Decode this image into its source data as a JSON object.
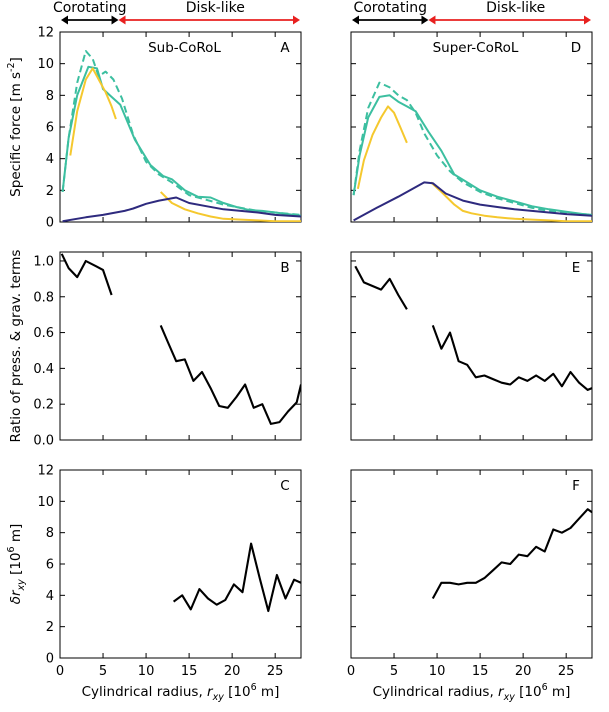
{
  "chart_data": {
    "type": "line",
    "shared_xlabel": "Cylindrical radius, r_xy [10^6 m]",
    "xlim": [
      0,
      28
    ],
    "x_ticks": [
      0,
      5,
      10,
      15,
      20,
      25
    ],
    "rows": [
      {
        "ylabel": "Specific force [m s^-2]",
        "ylim": [
          0,
          12
        ],
        "yticks": [
          0,
          2,
          4,
          6,
          8,
          10,
          12
        ]
      },
      {
        "ylabel": "Ratio of press. & grav. terms",
        "ylim": [
          0.0,
          1.05
        ],
        "yticks": [
          0.0,
          0.2,
          0.4,
          0.6,
          0.8,
          1.0
        ]
      },
      {
        "ylabel": "δr_xy [10^6 m]",
        "ylim": [
          0,
          12
        ],
        "yticks": [
          0,
          2,
          4,
          6,
          8,
          10,
          12
        ]
      }
    ],
    "region_labels": {
      "corotating": "Corotating",
      "disk_like": "Disk-like"
    },
    "colors": {
      "teal": "#3cbfa0",
      "yellow": "#f5c82e",
      "navy": "#2e2a7e",
      "black": "#000000",
      "red": "#e8201f"
    },
    "columns": [
      {
        "title": "Sub-CoRoL",
        "boundary_r": 6.8,
        "panels": [
          {
            "letter": "A",
            "series": [
              {
                "name": "teal-solid",
                "color": "teal",
                "dash": false,
                "x": [
                  0.3,
                  1,
                  2,
                  3.3,
                  4.3,
                  5,
                  6,
                  7,
                  8.7,
                  10.5,
                  12,
                  13,
                  14.5,
                  16,
                  17.5,
                  19,
                  20.5,
                  22,
                  23.5,
                  25,
                  26.5,
                  28
                ],
                "y": [
                  1.9,
                  5.3,
                  8.0,
                  9.8,
                  9.7,
                  8.4,
                  7.9,
                  7.4,
                  5.2,
                  3.6,
                  2.9,
                  2.7,
                  2.0,
                  1.6,
                  1.55,
                  1.2,
                  0.95,
                  0.75,
                  0.7,
                  0.6,
                  0.5,
                  0.4
                ]
              },
              {
                "name": "teal-dashed",
                "color": "teal",
                "dash": true,
                "x": [
                  0.3,
                  1,
                  2,
                  3,
                  3.8,
                  4.5,
                  5.3,
                  6.2,
                  7.2,
                  8.5,
                  10,
                  11.5,
                  13,
                  15,
                  17,
                  19,
                  21,
                  23,
                  25,
                  27,
                  28
                ],
                "y": [
                  1.9,
                  5.3,
                  8.8,
                  10.8,
                  10.3,
                  9.2,
                  9.5,
                  9.0,
                  7.8,
                  5.5,
                  3.8,
                  3.0,
                  2.5,
                  1.7,
                  1.4,
                  1.1,
                  0.9,
                  0.7,
                  0.6,
                  0.5,
                  0.45
                ]
              },
              {
                "name": "yellow-inner",
                "color": "yellow",
                "dash": false,
                "x": [
                  1.2,
                  2,
                  3,
                  3.8,
                  4.5,
                  5.3,
                  6,
                  6.5
                ],
                "y": [
                  4.2,
                  7.0,
                  9.0,
                  9.7,
                  9.0,
                  8.2,
                  7.3,
                  6.5
                ]
              },
              {
                "name": "yellow-outer",
                "color": "yellow",
                "dash": false,
                "x": [
                  11.7,
                  13,
                  14.5,
                  16,
                  17.5,
                  19,
                  21,
                  23,
                  25,
                  28
                ],
                "y": [
                  1.9,
                  1.2,
                  0.8,
                  0.55,
                  0.35,
                  0.2,
                  0.15,
                  0.1,
                  0.05,
                  0.05
                ]
              },
              {
                "name": "navy",
                "color": "navy",
                "dash": false,
                "x": [
                  0.3,
                  3,
                  5,
                  7.5,
                  8.5,
                  10,
                  11.5,
                  13.5,
                  15,
                  17,
                  19,
                  21,
                  23,
                  25,
                  28
                ],
                "y": [
                  0.05,
                  0.3,
                  0.45,
                  0.7,
                  0.85,
                  1.15,
                  1.35,
                  1.55,
                  1.2,
                  1.0,
                  0.8,
                  0.7,
                  0.6,
                  0.45,
                  0.35
                ]
              }
            ]
          },
          {
            "letter": "B",
            "series": [
              {
                "name": "ratio-inner",
                "color": "black",
                "dash": false,
                "x": [
                  0.2,
                  1,
                  2,
                  3,
                  4.2,
                  5,
                  6
                ],
                "y": [
                  1.04,
                  0.96,
                  0.91,
                  1.0,
                  0.97,
                  0.95,
                  0.81
                ]
              },
              {
                "name": "ratio-outer",
                "color": "black",
                "dash": false,
                "x": [
                  11.7,
                  12.5,
                  13.5,
                  14.5,
                  15.5,
                  16.5,
                  17.5,
                  18.5,
                  19.5,
                  20.5,
                  21.5,
                  22.5,
                  23.5,
                  24.5,
                  25.5,
                  26.5,
                  27.5,
                  28
                ],
                "y": [
                  0.64,
                  0.55,
                  0.44,
                  0.45,
                  0.33,
                  0.38,
                  0.29,
                  0.19,
                  0.18,
                  0.24,
                  0.31,
                  0.18,
                  0.2,
                  0.09,
                  0.1,
                  0.16,
                  0.21,
                  0.31
                ]
              }
            ]
          },
          {
            "letter": "C",
            "series": [
              {
                "name": "delta",
                "color": "black",
                "dash": false,
                "x": [
                  13.2,
                  14.2,
                  15.2,
                  16.2,
                  17.2,
                  18.2,
                  19.2,
                  20.2,
                  21.2,
                  22.2,
                  23.2,
                  24.2,
                  25.2,
                  26.2,
                  27.2,
                  28
                ],
                "y": [
                  3.6,
                  4.0,
                  3.1,
                  4.4,
                  3.8,
                  3.4,
                  3.7,
                  4.7,
                  4.2,
                  7.3,
                  5.1,
                  3.0,
                  5.3,
                  3.8,
                  5.0,
                  4.8
                ]
              }
            ]
          }
        ]
      },
      {
        "title": "Super-CoRoL",
        "boundary_r": 9.0,
        "panels": [
          {
            "letter": "D",
            "series": [
              {
                "name": "teal-solid",
                "color": "teal",
                "dash": false,
                "x": [
                  0.3,
                  1,
                  2,
                  3.3,
                  4.5,
                  5.5,
                  6.5,
                  7.5,
                  9,
                  10.5,
                  12,
                  13.5,
                  15,
                  17,
                  19,
                  21,
                  23,
                  25,
                  27,
                  28
                ],
                "y": [
                  1.7,
                  4.2,
                  6.6,
                  7.9,
                  8.0,
                  7.6,
                  7.3,
                  7.0,
                  5.7,
                  4.5,
                  3.0,
                  2.5,
                  2.0,
                  1.6,
                  1.3,
                  1.0,
                  0.8,
                  0.65,
                  0.5,
                  0.45
                ]
              },
              {
                "name": "teal-dashed",
                "color": "teal",
                "dash": true,
                "x": [
                  0.3,
                  1,
                  2,
                  3.3,
                  4.5,
                  5.5,
                  6.5,
                  7.5,
                  8.5,
                  10,
                  11.5,
                  13,
                  15,
                  17,
                  19,
                  21,
                  23,
                  25,
                  27,
                  28
                ],
                "y": [
                  1.7,
                  4.5,
                  7.2,
                  8.8,
                  8.5,
                  8.0,
                  7.7,
                  6.9,
                  5.6,
                  4.2,
                  3.2,
                  2.5,
                  1.9,
                  1.5,
                  1.2,
                  0.9,
                  0.7,
                  0.6,
                  0.5,
                  0.45
                ]
              },
              {
                "name": "yellow-inner",
                "color": "yellow",
                "dash": false,
                "x": [
                  0.8,
                  1.5,
                  2.5,
                  3.5,
                  4.3,
                  5,
                  5.8,
                  6.5
                ],
                "y": [
                  2.1,
                  3.9,
                  5.5,
                  6.6,
                  7.3,
                  6.9,
                  5.9,
                  5.0
                ]
              },
              {
                "name": "yellow-outer",
                "color": "yellow",
                "dash": false,
                "x": [
                  9.3,
                  10.5,
                  12,
                  13,
                  14,
                  15.5,
                  17,
                  19,
                  21,
                  23,
                  25,
                  28
                ],
                "y": [
                  2.5,
                  1.9,
                  1.1,
                  0.7,
                  0.55,
                  0.4,
                  0.3,
                  0.2,
                  0.15,
                  0.1,
                  0.05,
                  0.05
                ]
              },
              {
                "name": "navy",
                "color": "navy",
                "dash": false,
                "x": [
                  0.3,
                  3,
                  5.5,
                  8.5,
                  9.5,
                  11,
                  13,
                  15,
                  17,
                  19,
                  21,
                  23,
                  25,
                  28
                ],
                "y": [
                  0.1,
                  0.9,
                  1.6,
                  2.5,
                  2.45,
                  1.8,
                  1.35,
                  1.1,
                  0.95,
                  0.8,
                  0.7,
                  0.6,
                  0.5,
                  0.4
                ]
              }
            ]
          },
          {
            "letter": "E",
            "series": [
              {
                "name": "ratio-inner",
                "color": "black",
                "dash": false,
                "x": [
                  0.5,
                  1.5,
                  2.5,
                  3.5,
                  4.5,
                  5.5,
                  6.5
                ],
                "y": [
                  0.97,
                  0.88,
                  0.86,
                  0.84,
                  0.9,
                  0.81,
                  0.73
                ]
              },
              {
                "name": "ratio-outer",
                "color": "black",
                "dash": false,
                "x": [
                  9.5,
                  10.5,
                  11.5,
                  12.5,
                  13.5,
                  14.5,
                  15.5,
                  16.5,
                  17.5,
                  18.5,
                  19.5,
                  20.5,
                  21.5,
                  22.5,
                  23.5,
                  24.5,
                  25.5,
                  26.5,
                  27.5,
                  28
                ],
                "y": [
                  0.64,
                  0.51,
                  0.6,
                  0.44,
                  0.42,
                  0.35,
                  0.36,
                  0.34,
                  0.32,
                  0.31,
                  0.35,
                  0.33,
                  0.36,
                  0.33,
                  0.37,
                  0.3,
                  0.38,
                  0.32,
                  0.28,
                  0.29
                ]
              }
            ]
          },
          {
            "letter": "F",
            "series": [
              {
                "name": "delta",
                "color": "black",
                "dash": false,
                "x": [
                  9.5,
                  10.5,
                  11.5,
                  12.5,
                  13.5,
                  14.5,
                  15.5,
                  16.5,
                  17.5,
                  18.5,
                  19.5,
                  20.5,
                  21.5,
                  22.5,
                  23.5,
                  24.5,
                  25.5,
                  26.5,
                  27.5,
                  28
                ],
                "y": [
                  3.8,
                  4.8,
                  4.8,
                  4.7,
                  4.8,
                  4.8,
                  5.1,
                  5.6,
                  6.1,
                  6.0,
                  6.6,
                  6.5,
                  7.1,
                  6.8,
                  8.2,
                  8.0,
                  8.3,
                  8.9,
                  9.5,
                  9.3
                ]
              }
            ]
          }
        ]
      }
    ]
  }
}
